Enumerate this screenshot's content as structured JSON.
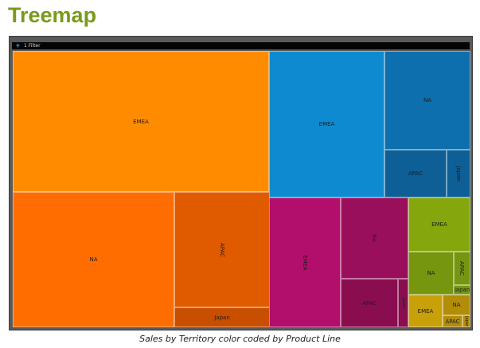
{
  "page": {
    "title": "Treemap",
    "caption": "Sales by Territory color coded by Product Line"
  },
  "filter_bar": {
    "icon": "plus-icon",
    "label": "1 Filter"
  },
  "chart_data": {
    "type": "treemap",
    "colors": {
      "orange": "#ff8c00",
      "dark-orange": "#ff6d00",
      "burnt-orange": "#e05a00",
      "rust": "#c84e00",
      "blue": "#0e8bd0",
      "steel-blue": "#0e6fae",
      "navy-blue": "#0d5f96",
      "magenta": "#b10f6b",
      "plum": "#9a0f5c",
      "wine": "#8a0d50",
      "olive": "#86a60d",
      "olive-dark": "#779610",
      "gold": "#c8a00a",
      "gold-dark": "#b18d08"
    },
    "groups": [
      {
        "color": "orange",
        "tiles": [
          {
            "label": "EMEA",
            "value": 56000,
            "color": "orange"
          },
          {
            "label": "NA",
            "value": 35500,
            "color": "dark-orange"
          },
          {
            "label": "APAC",
            "value": 17500,
            "color": "burnt-orange"
          },
          {
            "label": "Japan",
            "value": 3500,
            "color": "rust"
          }
        ]
      },
      {
        "color": "blue",
        "tiles": [
          {
            "label": "EMEA",
            "value": 23200,
            "color": "blue"
          },
          {
            "label": "NA",
            "value": 14600,
            "color": "steel-blue"
          },
          {
            "label": "APAC",
            "value": 7000,
            "color": "navy-blue"
          },
          {
            "label": "Japan",
            "value": 2100,
            "color": "navy-blue"
          }
        ]
      },
      {
        "color": "magenta",
        "tiles": [
          {
            "label": "EMEA",
            "value": 12800,
            "color": "magenta"
          },
          {
            "label": "NA",
            "value": 9000,
            "color": "plum"
          },
          {
            "label": "APAC",
            "value": 4700,
            "color": "wine"
          },
          {
            "label": "Japan",
            "value": 900,
            "color": "wine"
          }
        ]
      },
      {
        "color": "olive",
        "tiles": [
          {
            "label": "EMEA",
            "value": 4300,
            "color": "olive"
          },
          {
            "label": "NA",
            "value": 3000,
            "color": "olive-dark"
          },
          {
            "label": "APAC",
            "value": 1200,
            "color": "olive-dark"
          },
          {
            "label": "Japan",
            "value": 400,
            "color": "olive-dark"
          }
        ]
      },
      {
        "color": "gold",
        "tiles": [
          {
            "label": "EMEA",
            "value": 1900,
            "color": "gold"
          },
          {
            "label": "NA",
            "value": 1400,
            "color": "gold-dark"
          },
          {
            "label": "APAC",
            "value": 700,
            "color": "gold-dark"
          },
          {
            "label": "Japan",
            "value": 150,
            "color": "gold-dark"
          }
        ]
      }
    ]
  }
}
